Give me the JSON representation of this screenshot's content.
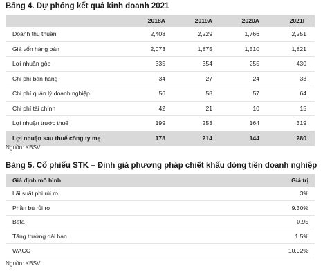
{
  "table1": {
    "title": "Bảng 4. Dự phóng kết quả kinh doanh 2021",
    "headers": [
      "",
      "2018A",
      "2019A",
      "2020A",
      "2021F"
    ],
    "rows": [
      {
        "label": "Doanh thu thuần",
        "values": [
          "2,408",
          "2,229",
          "1,766",
          "2,251"
        ]
      },
      {
        "label": "Giá vốn hàng bán",
        "values": [
          "2,073",
          "1,875",
          "1,510",
          "1,821"
        ]
      },
      {
        "label": "Lợi nhuận gộp",
        "values": [
          "335",
          "354",
          "255",
          "430"
        ]
      },
      {
        "label": "Chi phí bán hàng",
        "values": [
          "34",
          "27",
          "24",
          "33"
        ]
      },
      {
        "label": "Chi phí quản lý doanh nghiệp",
        "values": [
          "56",
          "58",
          "57",
          "64"
        ]
      },
      {
        "label": "Chi phí tài chính",
        "values": [
          "42",
          "21",
          "10",
          "15"
        ]
      },
      {
        "label": "Lợi nhuận trước thuế",
        "values": [
          "199",
          "253",
          "164",
          "319"
        ]
      },
      {
        "label": "Lợi nhuận sau thuế công ty mẹ",
        "values": [
          "178",
          "214",
          "144",
          "280"
        ]
      }
    ],
    "source": "Nguồn: KBSV"
  },
  "table2": {
    "title": "Bảng 5. Cổ phiếu STK – Định giá phương pháp chiết khấu dòng tiền doanh nghiệp",
    "headers": [
      "Giả định mô hình",
      "Giá trị"
    ],
    "rows": [
      {
        "label": "Lãi suất phi rủi ro",
        "value": "3%"
      },
      {
        "label": "Phần bù rủi ro",
        "value": "9.30%"
      },
      {
        "label": "Beta",
        "value": "0.95"
      },
      {
        "label": "Tăng trưởng dài hạn",
        "value": "1.5%"
      },
      {
        "label": "WACC",
        "value": "10.92%"
      }
    ],
    "source": "Nguồn: KBSV"
  },
  "colors": {
    "header_fill": "#d9d9d9",
    "row_rule": "#e4e4e4"
  }
}
